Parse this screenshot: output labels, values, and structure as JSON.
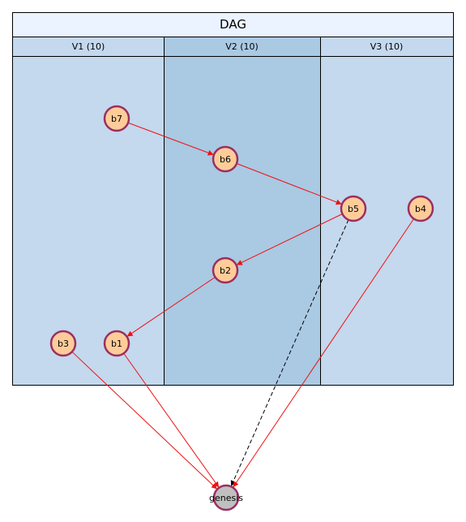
{
  "title": "DAG",
  "lanes": [
    {
      "id": "v1",
      "label": "V1 (10)"
    },
    {
      "id": "v2",
      "label": "V2 (10)"
    },
    {
      "id": "v3",
      "label": "V3 (10)"
    }
  ],
  "nodes": [
    {
      "id": "b7",
      "label": "b7",
      "lane": "v1"
    },
    {
      "id": "b6",
      "label": "b6",
      "lane": "v2"
    },
    {
      "id": "b5",
      "label": "b5",
      "lane": "v3"
    },
    {
      "id": "b4",
      "label": "b4",
      "lane": "v3"
    },
    {
      "id": "b2",
      "label": "b2",
      "lane": "v2"
    },
    {
      "id": "b3",
      "label": "b3",
      "lane": "v1"
    },
    {
      "id": "b1",
      "label": "b1",
      "lane": "v1"
    },
    {
      "id": "genesis",
      "label": "genesis",
      "lane": ""
    }
  ],
  "edges": [
    {
      "from": "b7",
      "to": "b6",
      "style": "solid"
    },
    {
      "from": "b6",
      "to": "b5",
      "style": "solid"
    },
    {
      "from": "b5",
      "to": "b2",
      "style": "solid"
    },
    {
      "from": "b2",
      "to": "b1",
      "style": "solid"
    },
    {
      "from": "b5",
      "to": "genesis",
      "style": "dashed"
    },
    {
      "from": "b4",
      "to": "genesis",
      "style": "solid"
    },
    {
      "from": "b3",
      "to": "genesis",
      "style": "solid"
    },
    {
      "from": "b1",
      "to": "genesis",
      "style": "solid"
    }
  ],
  "colors": {
    "node_fill": "#ffcc99",
    "genesis_fill": "#c0c0c0",
    "node_border": "#9a3060",
    "edge_solid": "#ee1111",
    "edge_dashed": "#000000"
  }
}
